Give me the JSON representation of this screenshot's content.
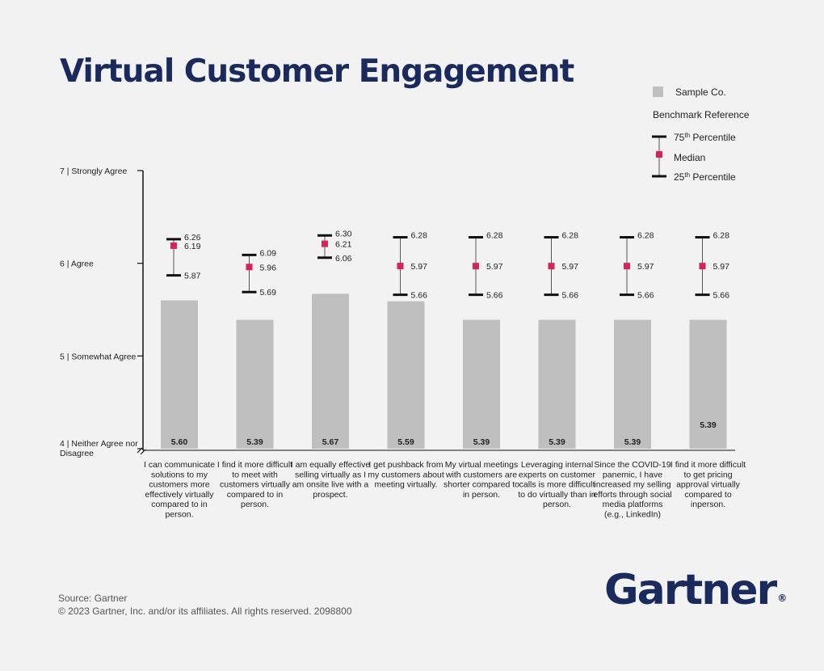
{
  "page": {
    "title": "Virtual Customer Engagement"
  },
  "legend": {
    "sample": "Sample Co.",
    "benchmark_heading": "Benchmark Reference",
    "p75": "75",
    "p75_suffix": " Percentile",
    "median": "Median",
    "p25": "25",
    "p25_suffix": " Percentile",
    "ordinal_sup": "th"
  },
  "footer": {
    "source": "Source: Gartner",
    "copyright": "© 2023 Gartner, Inc. and/or its affiliates. All rights reserved. 2098800",
    "logo": "Gartner",
    "logo_mark": "®"
  },
  "colors": {
    "bar": "#bfbfbf",
    "median": "#d6235a",
    "whisker": "#555555",
    "cap": "#111111",
    "title": "#1b2a5c"
  },
  "chart_data": {
    "type": "bar",
    "title": "Virtual Customer Engagement",
    "ylim": [
      4,
      7
    ],
    "y_ticks": [
      {
        "value": 7,
        "label": "7 | Strongly Agree"
      },
      {
        "value": 6,
        "label": "6 | Agree"
      },
      {
        "value": 5,
        "label": "5 | Somewhat Agree"
      },
      {
        "value": 4,
        "label": "4 | Neither Agree nor Disagree"
      }
    ],
    "categories": [
      "I can communicate solutions to my customers more effectively virtually compared to in person.",
      "I find it more difficult to meet with customers virtually compared to in person.",
      "I am equally effective selling virtually as I am onsite live with a prospect.",
      "I get pushback from my customers about meeting virtually.",
      "My virtual meetings with customers are shorter compared to in person.",
      "Leveraging internal experts on customer calls is more difficult to do virtually than in person.",
      "Since the COVID-19 panemic, I have increased my selling efforts through social media platforms (e.g., LinkedIn)",
      "I find it more difficult to get pricing approval virtually compared to inperson."
    ],
    "series": [
      {
        "name": "Sample Co.",
        "values": [
          5.6,
          5.39,
          5.67,
          5.59,
          5.39,
          5.39,
          5.39,
          5.39
        ]
      }
    ],
    "benchmark": {
      "p75": [
        6.26,
        6.09,
        6.3,
        6.28,
        6.28,
        6.28,
        6.28,
        6.28
      ],
      "median": [
        6.19,
        5.96,
        6.21,
        5.97,
        5.97,
        5.97,
        5.97,
        5.97
      ],
      "p25": [
        5.87,
        5.69,
        6.06,
        5.66,
        5.66,
        5.66,
        5.66,
        5.66
      ]
    },
    "legend_position": "top-right",
    "grid": false
  }
}
